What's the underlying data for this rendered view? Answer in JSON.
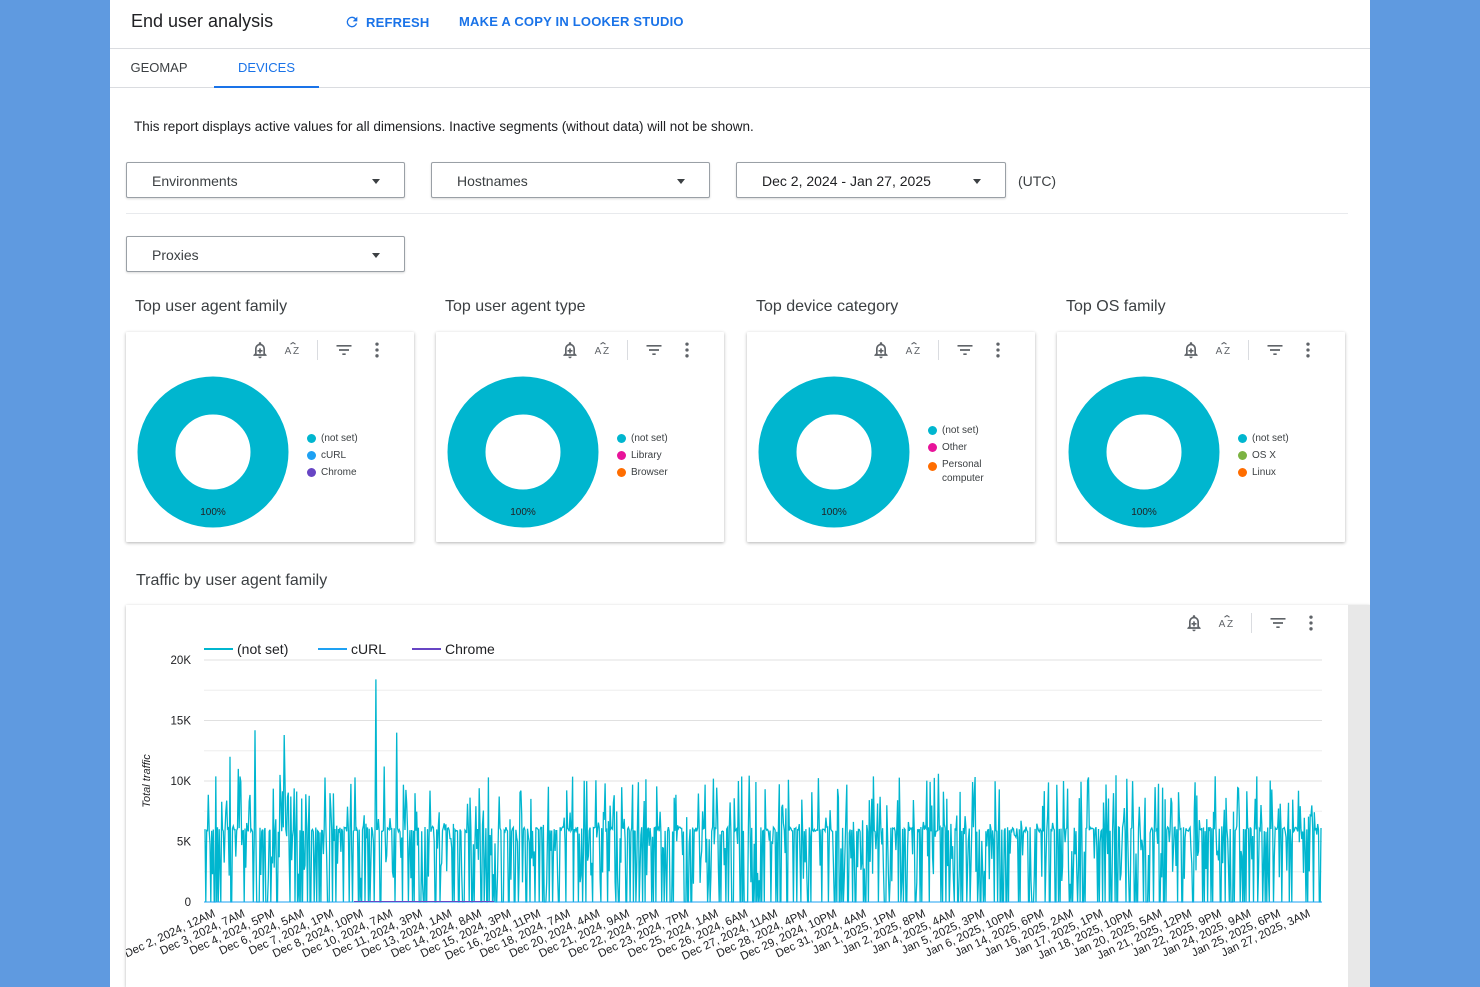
{
  "header": {
    "title": "End user analysis",
    "refresh_label": "REFRESH",
    "copy_label": "MAKE A COPY IN LOOKER STUDIO"
  },
  "tabs": [
    {
      "label": "GEOMAP",
      "active": false
    },
    {
      "label": "DEVICES",
      "active": true
    }
  ],
  "notice": "This report displays active values for all dimensions. Inactive segments (without data) will not be shown.",
  "filters": {
    "environments": "Environments",
    "hostnames": "Hostnames",
    "date_range": "Dec 2, 2024 - Jan 27, 2025",
    "timezone": "(UTC)",
    "proxies": "Proxies"
  },
  "colors": {
    "accent": "#1a73e8",
    "teal": "#00b6cf",
    "light_blue": "#1ea1f3",
    "purple": "#6745c4",
    "magenta": "#e8149a",
    "orange": "#ff6d00",
    "green": "#7cb342"
  },
  "toolbar_icons": [
    "alert-bell-icon",
    "sort-az-icon",
    "filter-icon",
    "more-vert-icon"
  ],
  "chart_data": [
    {
      "type": "pie",
      "title": "Top user agent family",
      "categories": [
        "(not set)",
        "cURL",
        "Chrome"
      ],
      "values": [
        100,
        0,
        0
      ],
      "slice_label": "100%",
      "colors": [
        "#00b6cf",
        "#1ea1f3",
        "#6745c4"
      ]
    },
    {
      "type": "pie",
      "title": "Top user agent type",
      "categories": [
        "(not set)",
        "Library",
        "Browser"
      ],
      "values": [
        100,
        0,
        0
      ],
      "slice_label": "100%",
      "colors": [
        "#00b6cf",
        "#e8149a",
        "#ff6d00"
      ]
    },
    {
      "type": "pie",
      "title": "Top device category",
      "categories": [
        "(not set)",
        "Other",
        "Personal computer"
      ],
      "values": [
        100,
        0,
        0
      ],
      "slice_label": "100%",
      "colors": [
        "#00b6cf",
        "#e8149a",
        "#ff6d00"
      ]
    },
    {
      "type": "pie",
      "title": "Top OS family",
      "categories": [
        "(not set)",
        "OS X",
        "Linux"
      ],
      "values": [
        100,
        0,
        0
      ],
      "slice_label": "100%",
      "colors": [
        "#00b6cf",
        "#7cb342",
        "#ff6d00"
      ]
    },
    {
      "type": "line",
      "title": "Traffic by user agent family",
      "ylabel": "Total traffic",
      "ylim": [
        0,
        20000
      ],
      "yticks": [
        0,
        5000,
        10000,
        15000,
        20000
      ],
      "ytick_labels": [
        "0",
        "5K",
        "10K",
        "15K",
        "20K"
      ],
      "x_tick_labels": [
        "Dec 2, 2024, 12AM",
        "Dec 3, 2024, 7AM",
        "Dec 4, 2024, 5PM",
        "Dec 6, 2024, 5AM",
        "Dec 7, 2024, 1PM",
        "Dec 8, 2024, 10PM",
        "Dec 10, 2024, 7AM",
        "Dec 11, 2024, 3PM",
        "Dec 13, 2024, 1AM",
        "Dec 14, 2024, 8AM",
        "Dec 15, 2024, 3PM",
        "Dec 16, 2024, 11PM",
        "Dec 18, 2024, 7AM",
        "Dec 20, 2024, 4AM",
        "Dec 21, 2024, 9AM",
        "Dec 22, 2024, 2PM",
        "Dec 23, 2024, 7PM",
        "Dec 25, 2024, 1AM",
        "Dec 26, 2024, 6AM",
        "Dec 27, 2024, 11AM",
        "Dec 28, 2024, 4PM",
        "Dec 29, 2024, 10PM",
        "Dec 31, 2024, 4AM",
        "Jan 1, 2025, 1PM",
        "Jan 2, 2025, 8PM",
        "Jan 4, 2025, 4AM",
        "Jan 5, 2025, 3PM",
        "Jan 6, 2025, 10PM",
        "Jan 14, 2025, 6PM",
        "Jan 16, 2025, 2AM",
        "Jan 17, 2025, 1PM",
        "Jan 18, 2025, 10PM",
        "Jan 20, 2025, 5AM",
        "Jan 21, 2025, 12PM",
        "Jan 22, 2025, 9PM",
        "Jan 24, 2025, 9AM",
        "Jan 25, 2025, 6PM",
        "Jan 27, 2025, 3AM"
      ],
      "series": [
        {
          "name": "(not set)",
          "color": "#00b6cf"
        },
        {
          "name": "cURL",
          "color": "#1ea1f3"
        },
        {
          "name": "Chrome",
          "color": "#6745c4"
        }
      ],
      "legend_position": "top-left",
      "grid": true
    }
  ]
}
